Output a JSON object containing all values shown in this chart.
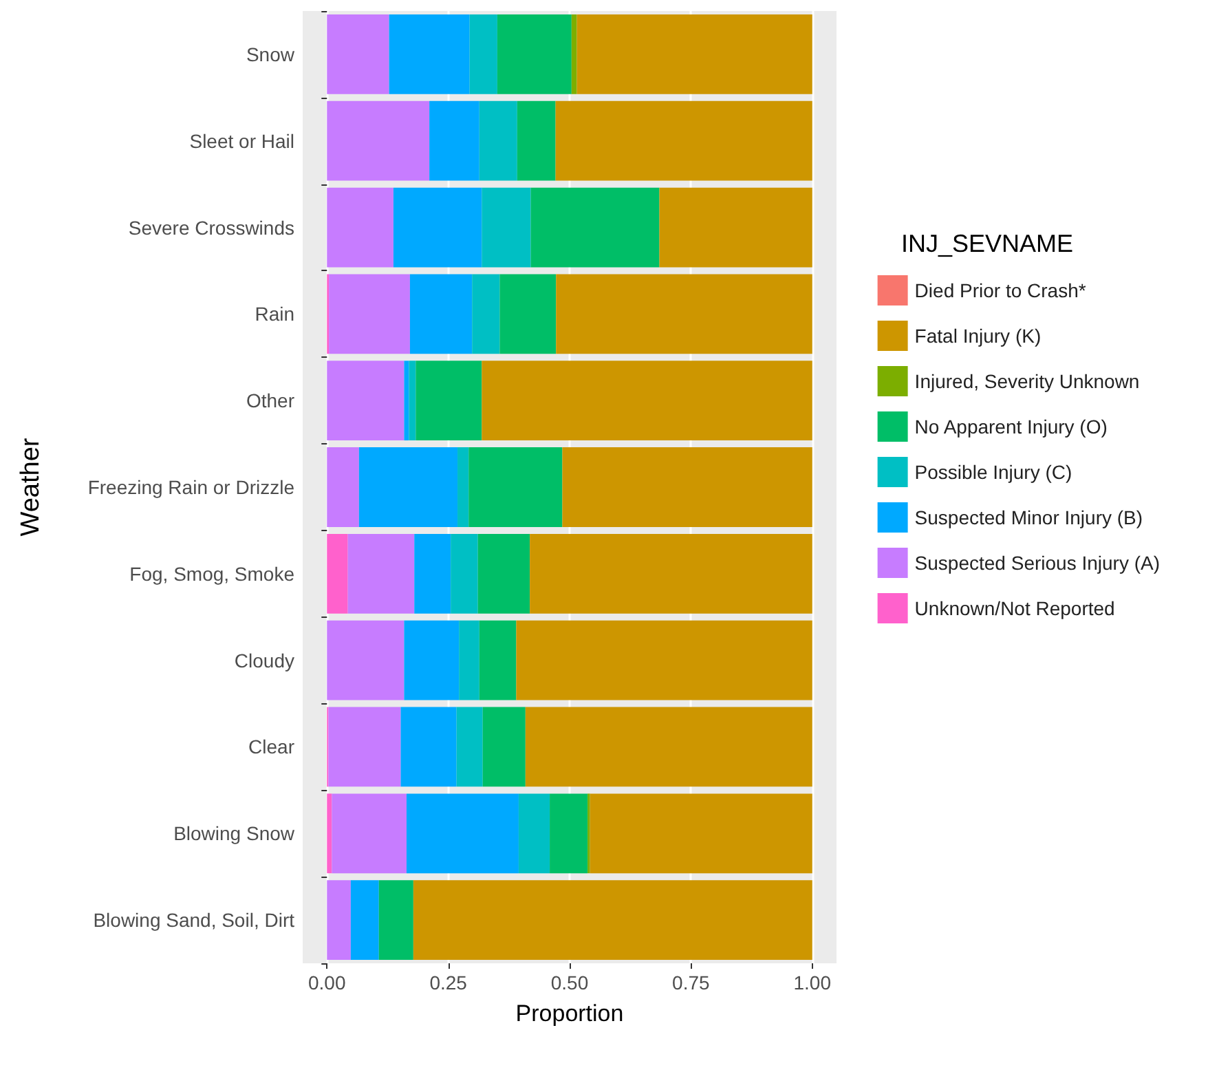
{
  "chart_data": {
    "type": "bar",
    "orientation": "horizontal",
    "stacked": true,
    "xlabel": "Proportion",
    "ylabel": "Weather",
    "legend_title": "INJ_SEVNAME",
    "legend": "right",
    "grid": true,
    "categories": [
      "Snow",
      "Sleet or Hail",
      "Severe Crosswinds",
      "Rain",
      "Other",
      "Freezing Rain or Drizzle",
      "Fog, Smog, Smoke",
      "Cloudy",
      "Clear",
      "Blowing Snow",
      "Blowing Sand, Soil, Dirt"
    ],
    "xlim": [
      -0.05,
      1.05
    ],
    "xticks": [
      {
        "value": 0,
        "label": "0.00"
      },
      {
        "value": 0.25,
        "label": "0.25"
      },
      {
        "value": 0.5,
        "label": "0.50"
      },
      {
        "value": 0.75,
        "label": "0.75"
      },
      {
        "value": 1,
        "label": "1.00"
      }
    ],
    "series": [
      {
        "name": "Unknown/Not Reported",
        "color": "#ff61cc",
        "values": [
          0,
          0,
          0,
          0.004,
          0,
          0,
          0.043,
          0,
          0.003,
          0.01,
          0
        ]
      },
      {
        "name": "Suspected Serious Injury (A)",
        "color": "#c77cff",
        "values": [
          0.128,
          0.211,
          0.137,
          0.167,
          0.159,
          0.066,
          0.137,
          0.159,
          0.149,
          0.154,
          0.049
        ]
      },
      {
        "name": "Suspected Minor Injury (B)",
        "color": "#00a9ff",
        "values": [
          0.166,
          0.103,
          0.182,
          0.128,
          0.01,
          0.203,
          0.075,
          0.113,
          0.115,
          0.231,
          0.058
        ]
      },
      {
        "name": "Possible Injury (C)",
        "color": "#00bfc4",
        "values": [
          0.057,
          0.078,
          0.101,
          0.057,
          0.014,
          0.023,
          0.056,
          0.042,
          0.054,
          0.064,
          0
        ]
      },
      {
        "name": "No Apparent Injury (O)",
        "color": "#00be67",
        "values": [
          0.153,
          0.079,
          0.265,
          0.116,
          0.136,
          0.193,
          0.107,
          0.076,
          0.088,
          0.078,
          0.071
        ]
      },
      {
        "name": "Injured, Severity Unknown",
        "color": "#7cae00",
        "values": [
          0.011,
          0,
          0,
          0,
          0,
          0,
          0,
          0,
          0,
          0.005,
          0
        ]
      },
      {
        "name": "Fatal Injury (K)",
        "color": "#cd9600",
        "values": [
          0.485,
          0.529,
          0.315,
          0.528,
          0.681,
          0.515,
          0.582,
          0.61,
          0.591,
          0.458,
          0.822
        ]
      },
      {
        "name": "Died Prior to Crash*",
        "color": "#f8766d",
        "values": [
          0,
          0,
          0,
          0,
          0,
          0,
          0,
          0,
          0,
          0,
          0
        ]
      }
    ]
  }
}
